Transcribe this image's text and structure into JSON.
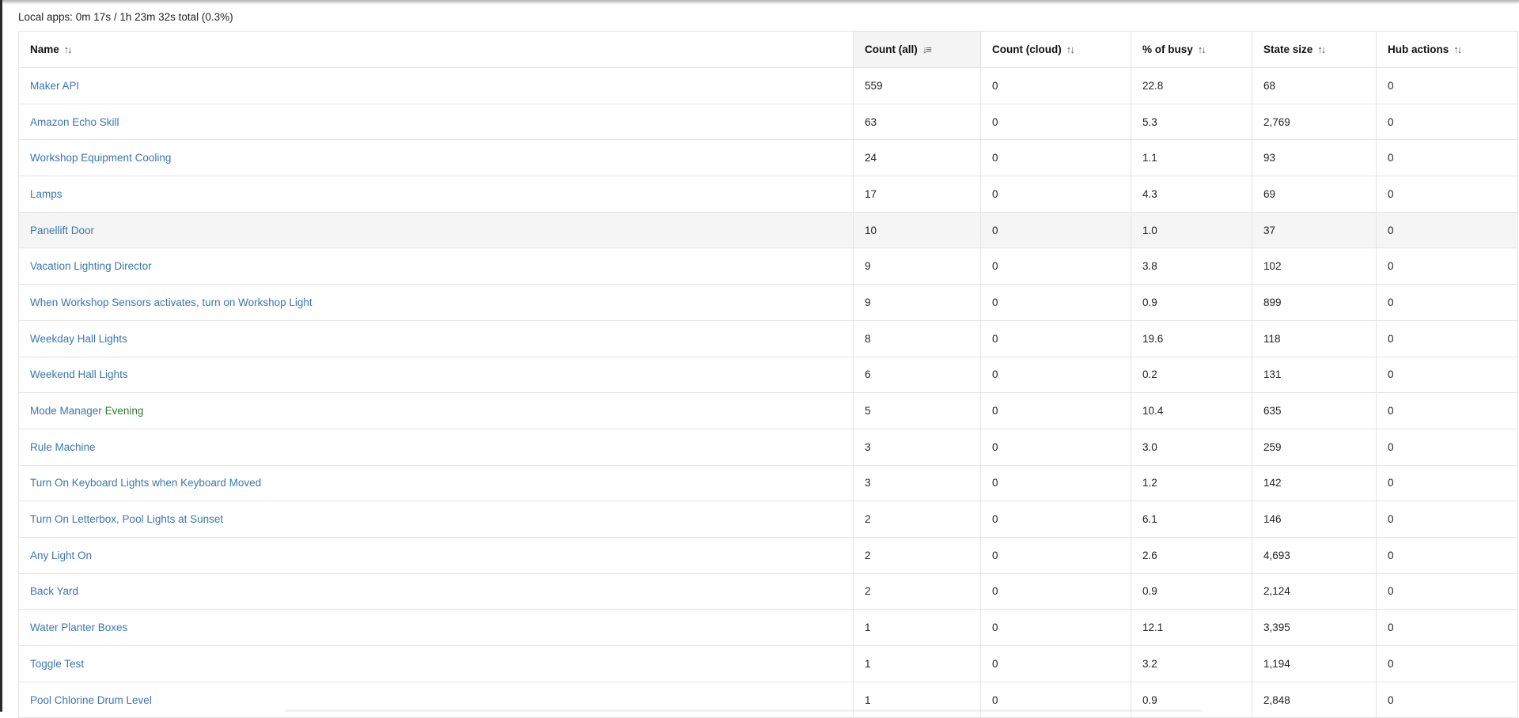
{
  "summary": "Local apps: 0m 17s / 1h 23m 32s total (0.3%)",
  "columns": [
    {
      "label": "Name",
      "sort_icon": "sort-both-icon",
      "glyph": "↑↓"
    },
    {
      "label": "Count (all)",
      "sort_icon": "sort-descending-icon",
      "glyph": "↓≡"
    },
    {
      "label": "Count (cloud)",
      "sort_icon": "sort-both-icon",
      "glyph": "↑↓"
    },
    {
      "label": "% of busy",
      "sort_icon": "sort-both-icon",
      "glyph": "↑↓"
    },
    {
      "label": "State size",
      "sort_icon": "sort-both-icon",
      "glyph": "↑↓"
    },
    {
      "label": "Hub actions",
      "sort_icon": "sort-both-icon",
      "glyph": "↑↓"
    }
  ],
  "colors": {
    "link": "#3a76b0",
    "tag": "#2e7d32"
  },
  "rows": [
    {
      "name": "Maker API",
      "tag": "",
      "count_all": "559",
      "count_cloud": "0",
      "pct_busy": "22.8",
      "state_size": "68",
      "hub_actions": "0"
    },
    {
      "name": "Amazon Echo Skill",
      "tag": "",
      "count_all": "63",
      "count_cloud": "0",
      "pct_busy": "5.3",
      "state_size": "2,769",
      "hub_actions": "0"
    },
    {
      "name": "Workshop Equipment Cooling",
      "tag": "",
      "count_all": "24",
      "count_cloud": "0",
      "pct_busy": "1.1",
      "state_size": "93",
      "hub_actions": "0"
    },
    {
      "name": "Lamps",
      "tag": "",
      "count_all": "17",
      "count_cloud": "0",
      "pct_busy": "4.3",
      "state_size": "69",
      "hub_actions": "0"
    },
    {
      "name": "Panellift Door",
      "tag": "",
      "count_all": "10",
      "count_cloud": "0",
      "pct_busy": "1.0",
      "state_size": "37",
      "hub_actions": "0"
    },
    {
      "name": "Vacation Lighting Director",
      "tag": "",
      "count_all": "9",
      "count_cloud": "0",
      "pct_busy": "3.8",
      "state_size": "102",
      "hub_actions": "0"
    },
    {
      "name": "When Workshop Sensors activates, turn on Workshop Light",
      "tag": "",
      "count_all": "9",
      "count_cloud": "0",
      "pct_busy": "0.9",
      "state_size": "899",
      "hub_actions": "0"
    },
    {
      "name": "Weekday Hall Lights",
      "tag": "",
      "count_all": "8",
      "count_cloud": "0",
      "pct_busy": "19.6",
      "state_size": "118",
      "hub_actions": "0"
    },
    {
      "name": "Weekend Hall Lights",
      "tag": "",
      "count_all": "6",
      "count_cloud": "0",
      "pct_busy": "0.2",
      "state_size": "131",
      "hub_actions": "0"
    },
    {
      "name": "Mode Manager",
      "tag": "Evening",
      "count_all": "5",
      "count_cloud": "0",
      "pct_busy": "10.4",
      "state_size": "635",
      "hub_actions": "0"
    },
    {
      "name": "Rule Machine",
      "tag": "",
      "count_all": "3",
      "count_cloud": "0",
      "pct_busy": "3.0",
      "state_size": "259",
      "hub_actions": "0"
    },
    {
      "name": "Turn On Keyboard Lights when Keyboard Moved",
      "tag": "",
      "count_all": "3",
      "count_cloud": "0",
      "pct_busy": "1.2",
      "state_size": "142",
      "hub_actions": "0"
    },
    {
      "name": "Turn On Letterbox, Pool Lights at Sunset",
      "tag": "",
      "count_all": "2",
      "count_cloud": "0",
      "pct_busy": "6.1",
      "state_size": "146",
      "hub_actions": "0"
    },
    {
      "name": "Any Light On",
      "tag": "",
      "count_all": "2",
      "count_cloud": "0",
      "pct_busy": "2.6",
      "state_size": "4,693",
      "hub_actions": "0"
    },
    {
      "name": "Back Yard",
      "tag": "",
      "count_all": "2",
      "count_cloud": "0",
      "pct_busy": "0.9",
      "state_size": "2,124",
      "hub_actions": "0"
    },
    {
      "name": "Water Planter Boxes",
      "tag": "",
      "count_all": "1",
      "count_cloud": "0",
      "pct_busy": "12.1",
      "state_size": "3,395",
      "hub_actions": "0"
    },
    {
      "name": "Toggle Test",
      "tag": "",
      "count_all": "1",
      "count_cloud": "0",
      "pct_busy": "3.2",
      "state_size": "1,194",
      "hub_actions": "0"
    },
    {
      "name": "Pool Chlorine Drum Level",
      "tag": "",
      "count_all": "1",
      "count_cloud": "0",
      "pct_busy": "0.9",
      "state_size": "2,848",
      "hub_actions": "0"
    }
  ]
}
